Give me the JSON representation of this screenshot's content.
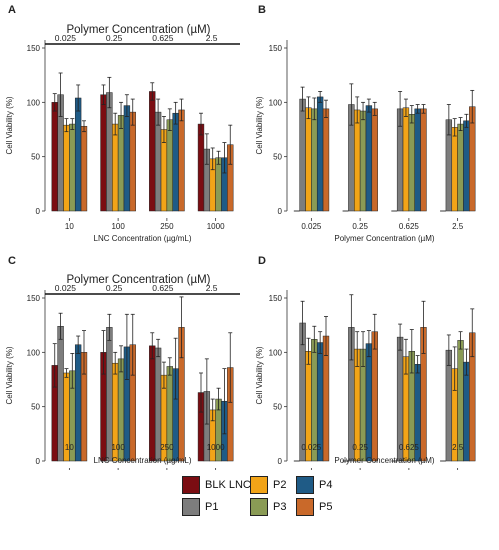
{
  "legend": {
    "items": [
      {
        "name": "BLK LNC",
        "color": "#7b0d12"
      },
      {
        "name": "P1",
        "color": "#7d7d7d"
      },
      {
        "name": "P2",
        "color": "#f2a418"
      },
      {
        "name": "P3",
        "color": "#8a9b55"
      },
      {
        "name": "P4",
        "color": "#1f5b86"
      },
      {
        "name": "P5",
        "color": "#c9692a"
      }
    ]
  },
  "chart_data": [
    {
      "panel": "A",
      "type": "bar",
      "xlabel": "LNC Concentration (µg/mL)",
      "ylabel": "Cell Viability (%)",
      "ylim": [
        0,
        150
      ],
      "yticks": [
        0,
        50,
        100,
        150
      ],
      "categories": [
        "10",
        "100",
        "250",
        "1000"
      ],
      "top_axis": {
        "title": "Polymer Concentration (µM)",
        "labels": [
          "0.025",
          "0.25",
          "0.625",
          "2.5"
        ]
      },
      "series": [
        {
          "name": "BLK LNC",
          "values": [
            100,
            107,
            110,
            80
          ],
          "errors": [
            8,
            9,
            8,
            10
          ]
        },
        {
          "name": "P1",
          "values": [
            107,
            109,
            91,
            57
          ],
          "errors": [
            20,
            14,
            12,
            14
          ]
        },
        {
          "name": "P2",
          "values": [
            79,
            80,
            75,
            48
          ],
          "errors": [
            6,
            10,
            12,
            10
          ]
        },
        {
          "name": "P3",
          "values": [
            80,
            88,
            84,
            49
          ],
          "errors": [
            5,
            12,
            10,
            6
          ]
        },
        {
          "name": "P4",
          "values": [
            104,
            97,
            90,
            49
          ],
          "errors": [
            12,
            10,
            10,
            14
          ]
        },
        {
          "name": "P5",
          "values": [
            78,
            91,
            93,
            61
          ],
          "errors": [
            5,
            12,
            10,
            18
          ]
        }
      ]
    },
    {
      "panel": "B",
      "type": "bar",
      "xlabel": "Polymer Concentration (µM)",
      "ylabel": "Cell Viability (%)",
      "ylim": [
        0,
        150
      ],
      "yticks": [
        0,
        50,
        100,
        150
      ],
      "categories": [
        "0.025",
        "0.25",
        "0.625",
        "2.5"
      ],
      "series": [
        {
          "name": "BLK LNC",
          "values": [
            0,
            0,
            0,
            0
          ],
          "errors": [
            0,
            0,
            0,
            0
          ]
        },
        {
          "name": "P1",
          "values": [
            103,
            98,
            94,
            84
          ],
          "errors": [
            11,
            19,
            16,
            14
          ]
        },
        {
          "name": "P2",
          "values": [
            95,
            93,
            95,
            77
          ],
          "errors": [
            10,
            12,
            8,
            8
          ]
        },
        {
          "name": "P3",
          "values": [
            94,
            92,
            89,
            80
          ],
          "errors": [
            10,
            8,
            8,
            6
          ]
        },
        {
          "name": "P4",
          "values": [
            105,
            97,
            94,
            83
          ],
          "errors": [
            5,
            6,
            4,
            6
          ]
        },
        {
          "name": "P5",
          "values": [
            94,
            94,
            94,
            96
          ],
          "errors": [
            8,
            6,
            4,
            15
          ]
        }
      ]
    },
    {
      "panel": "C",
      "type": "bar",
      "xlabel": "LNC Concentration (µg/mL)",
      "ylabel": "Cell Viability (%)",
      "ylim": [
        0,
        150
      ],
      "yticks": [
        0,
        50,
        100,
        150
      ],
      "categories": [
        "10",
        "100",
        "250",
        "1000"
      ],
      "top_axis": {
        "title": "Polymer Concentration (µM)",
        "labels": [
          "0.025",
          "0.25",
          "0.625",
          "2.5"
        ]
      },
      "series": [
        {
          "name": "BLK LNC",
          "values": [
            88,
            100,
            106,
            63
          ],
          "errors": [
            20,
            20,
            12,
            18
          ]
        },
        {
          "name": "P1",
          "values": [
            124,
            123,
            104,
            64
          ],
          "errors": [
            12,
            12,
            8,
            30
          ]
        },
        {
          "name": "P2",
          "values": [
            81,
            90,
            79,
            47
          ],
          "errors": [
            4,
            10,
            12,
            10
          ]
        },
        {
          "name": "P3",
          "values": [
            83,
            94,
            87,
            57
          ],
          "errors": [
            16,
            12,
            8,
            10
          ]
        },
        {
          "name": "P4",
          "values": [
            107,
            105,
            85,
            55
          ],
          "errors": [
            8,
            30,
            28,
            30
          ]
        },
        {
          "name": "P5",
          "values": [
            100,
            107,
            123,
            86
          ],
          "errors": [
            20,
            28,
            28,
            32
          ]
        }
      ]
    },
    {
      "panel": "D",
      "type": "bar",
      "xlabel": "Polymer Concentration (µM)",
      "ylabel": "Cell Viability (%)",
      "ylim": [
        0,
        150
      ],
      "yticks": [
        0,
        50,
        100,
        150
      ],
      "categories": [
        "0.025",
        "0.25",
        "0.625",
        "2.5"
      ],
      "series": [
        {
          "name": "BLK LNC",
          "values": [
            0,
            0,
            0,
            0
          ],
          "errors": [
            0,
            0,
            0,
            0
          ]
        },
        {
          "name": "P1",
          "values": [
            127,
            123,
            114,
            102
          ],
          "errors": [
            20,
            30,
            12,
            14
          ]
        },
        {
          "name": "P2",
          "values": [
            101,
            103,
            96,
            85
          ],
          "errors": [
            12,
            16,
            16,
            20
          ]
        },
        {
          "name": "P3",
          "values": [
            112,
            103,
            101,
            111
          ],
          "errors": [
            12,
            16,
            20,
            8
          ]
        },
        {
          "name": "P4",
          "values": [
            109,
            108,
            89,
            91
          ],
          "errors": [
            10,
            12,
            8,
            12
          ]
        },
        {
          "name": "P5",
          "values": [
            115,
            119,
            123,
            118
          ],
          "errors": [
            18,
            16,
            24,
            22
          ]
        }
      ]
    }
  ]
}
